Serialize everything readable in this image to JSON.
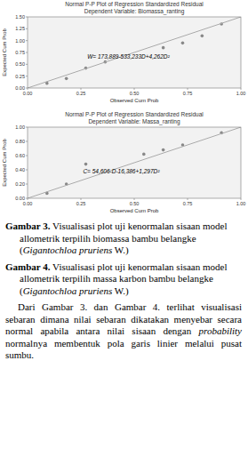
{
  "chart_data": [
    {
      "type": "scatter",
      "title": "Normal P-P Plot of Regression Standardized Residual",
      "subtitle": "Dependent Variable: Biomassa_ranting",
      "x_label": "Observed Cum Prob",
      "y_label": "Expected Cum Prob",
      "xlim": [
        0.0,
        1.0
      ],
      "ylim": [
        0.0,
        1.5
      ],
      "xticks": [
        {
          "value": 0.0,
          "label": "0.00"
        },
        0.25,
        {
          "value": 0.5,
          "label": "0.50"
        },
        0.75,
        {
          "value": 1.0,
          "label": "1.00"
        }
      ],
      "yticks": [
        {
          "value": 0.0,
          "label": "0.00"
        },
        0.25,
        {
          "value": 0.5,
          "label": "0.50"
        },
        0.75,
        {
          "value": 1.0,
          "label": "1.00"
        },
        1.25,
        {
          "value": 1.5,
          "label": "1.50"
        }
      ],
      "grid": false,
      "series": [
        {
          "type": "scatter",
          "color": "#888888",
          "x": [
            0.091,
            0.182,
            0.273,
            0.364,
            0.636,
            0.727,
            0.818,
            0.909
          ],
          "values": [
            0.1,
            0.2,
            0.42,
            0.55,
            0.85,
            0.95,
            1.1,
            1.35
          ]
        },
        {
          "type": "line",
          "color": "#aaaaaa",
          "x": [
            0.0,
            1.0
          ],
          "values": [
            0.0,
            1.5
          ]
        }
      ],
      "annotations": [
        {
          "text": "W= 173,889-533,233D+4,262D²",
          "x": 0.28,
          "y": 0.62
        }
      ]
    },
    {
      "type": "scatter",
      "title": "Normal P-P Plot of Regression Standardized Residual",
      "subtitle": "Dependent Variable: Massa_ranting",
      "x_label": "Observed Cum Prob",
      "y_label": "Expected Cum Prob",
      "xlim": [
        0.0,
        1.0
      ],
      "ylim": [
        0.0,
        1.0
      ],
      "xticks": [
        {
          "value": 0.0,
          "label": "0.00"
        },
        0.25,
        {
          "value": 0.5,
          "label": "0.50"
        },
        0.75,
        {
          "value": 1.0,
          "label": "1.00"
        }
      ],
      "yticks": [
        {
          "value": 0.0,
          "label": "0.00"
        },
        {
          "value": 0.2,
          "label": "0.20"
        },
        {
          "value": 0.4,
          "label": "0.40"
        },
        {
          "value": 0.6,
          "label": "0.60"
        },
        {
          "value": 0.8,
          "label": "0.80"
        },
        {
          "value": 1.0,
          "label": "1.00"
        }
      ],
      "grid": false,
      "series": [
        {
          "type": "scatter",
          "color": "#888888",
          "x": [
            0.091,
            0.182,
            0.273,
            0.545,
            0.636,
            0.727,
            0.909
          ],
          "values": [
            0.07,
            0.2,
            0.48,
            0.62,
            0.68,
            0.75,
            0.92
          ]
        },
        {
          "type": "line",
          "color": "#aaaaaa",
          "x": [
            0.0,
            1.0
          ],
          "values": [
            0.0,
            1.0
          ]
        }
      ],
      "annotations": [
        {
          "text": "C= 54,606-D-16,386+1,297D²",
          "x": 0.26,
          "y": 0.35
        }
      ]
    }
  ],
  "captions": [
    {
      "label": "Gambar 3.",
      "segments": [
        "Visualisasi plot uji kenormalan sisaan model allometrik terpilih biomassa bambu belangke (",
        "Gigantochloa pruriens",
        " W.)"
      ]
    },
    {
      "label": "Gambar 4.",
      "segments": [
        "Visualisasi plot uji kenormalan sisaan model allometrik terpilih massa karbon bambu belangke (",
        "Gigantochloa pruriens",
        " W.)"
      ]
    }
  ],
  "paragraph": {
    "segments": [
      "Dari Gambar 3. dan Gambar 4. terlihat visualisasi sebaran dimana nilai sebaran dikatakan menyebar secara normal apabila antara nilai sisaan dengan ",
      "probability",
      " normalnya membentuk pola garis linier melalui pusat sumbu."
    ]
  }
}
